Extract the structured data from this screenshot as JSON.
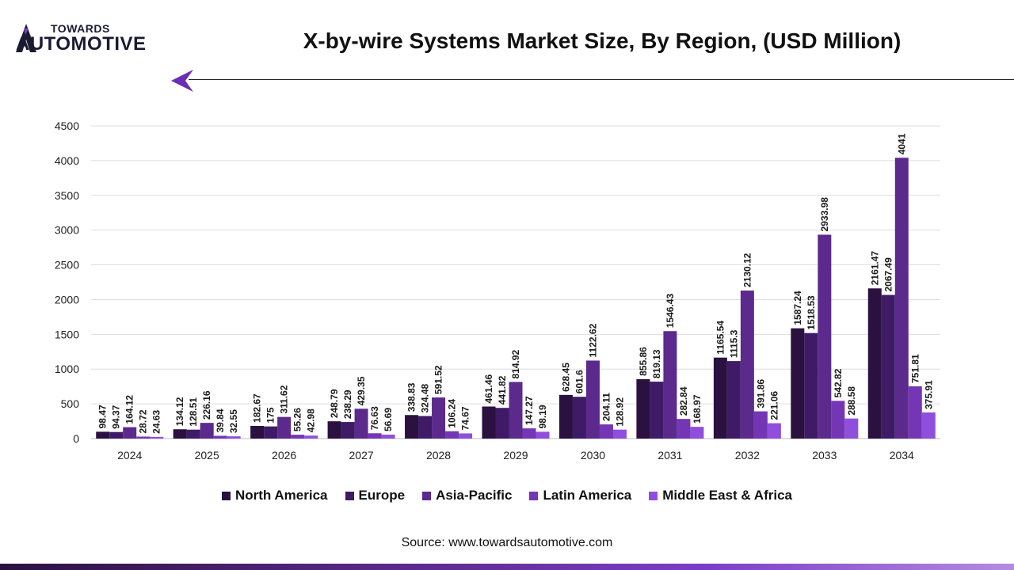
{
  "brand": {
    "top": "TOWARDS",
    "bottom": "AUTOMOTIVE"
  },
  "title": "X-by-wire Systems Market Size, By Region, (USD Million)",
  "source": "Source: www.towardsautomotive.com",
  "chart_data": {
    "type": "bar",
    "categories": [
      "2024",
      "2025",
      "2026",
      "2027",
      "2028",
      "2029",
      "2030",
      "2031",
      "2032",
      "2033",
      "2034"
    ],
    "ylim": [
      0,
      4500
    ],
    "yticks": [
      0,
      500,
      1000,
      1500,
      2000,
      2500,
      3000,
      3500,
      4000,
      4500
    ],
    "grid": true,
    "legend_position": "bottom",
    "series": [
      {
        "name": "North America",
        "color": "#2a1140",
        "values": [
          98.47,
          134.12,
          182.67,
          248.79,
          338.83,
          461.46,
          628.45,
          855.86,
          1165.54,
          1587.24,
          2161.47
        ]
      },
      {
        "name": "Europe",
        "color": "#3f1a66",
        "values": [
          94.37,
          128.51,
          175,
          238.29,
          324.48,
          441.82,
          601.6,
          819.13,
          1115.3,
          1518.53,
          2067.49
        ]
      },
      {
        "name": "Asia-Pacific",
        "color": "#5b2a8c",
        "values": [
          164.12,
          226.16,
          311.62,
          429.35,
          591.52,
          814.92,
          1122.62,
          1546.43,
          2130.12,
          2933.98,
          4041
        ]
      },
      {
        "name": "Latin America",
        "color": "#7436b5",
        "values": [
          28.72,
          39.84,
          55.26,
          76.63,
          106.24,
          147.27,
          204.11,
          282.84,
          391.86,
          542.82,
          751.81
        ]
      },
      {
        "name": "Middle East & Africa",
        "color": "#8f4fdc",
        "values": [
          24.63,
          32.55,
          42.98,
          56.69,
          74.67,
          98.19,
          128.92,
          168.97,
          221.06,
          288.58,
          375.91
        ]
      }
    ]
  }
}
